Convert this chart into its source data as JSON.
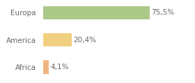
{
  "categories": [
    "Africa",
    "America",
    "Europa"
  ],
  "values": [
    4.1,
    20.4,
    75.5
  ],
  "labels": [
    "4,1%",
    "20,4%",
    "75,5%"
  ],
  "bar_colors": [
    "#f0b482",
    "#f0d080",
    "#adc98a"
  ],
  "background_color": "#ffffff",
  "xlim": [
    0,
    105
  ],
  "bar_height": 0.5,
  "label_fontsize": 7.5,
  "category_fontsize": 7.5,
  "text_color": "#666666",
  "grid_color": "#e0e0e0"
}
